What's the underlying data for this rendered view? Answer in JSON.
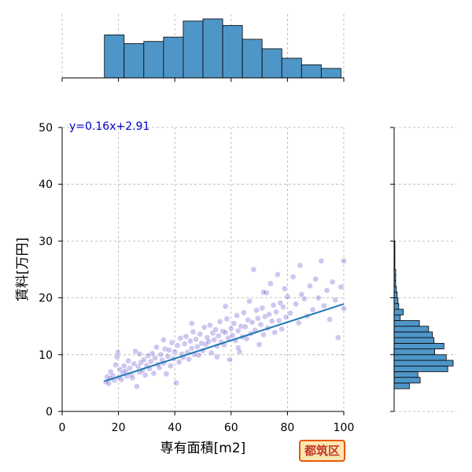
{
  "badge": {
    "label": "都筑区"
  },
  "chart_data": {
    "type": "scatter",
    "title": "",
    "xlabel": "専有面積[m2]",
    "ylabel": "賃料[万円]",
    "xlim": [
      0,
      100
    ],
    "ylim": [
      0,
      50
    ],
    "xticks": [
      0,
      20,
      40,
      60,
      80,
      100
    ],
    "yticks": [
      0,
      10,
      20,
      30,
      40,
      50
    ],
    "grid": true,
    "point_color": "#4b3bc4",
    "line_color": "#1f77b4",
    "hist_color": "#4f96c8",
    "fit": {
      "label": "y=0.16x+2.91",
      "slope": 0.16,
      "intercept": 2.91,
      "x_range": [
        15,
        100
      ],
      "label_color": "#0000cc"
    },
    "points": [
      [
        15.5,
        5.2
      ],
      [
        16.0,
        6.1
      ],
      [
        16.5,
        4.9
      ],
      [
        17.0,
        5.8
      ],
      [
        17.2,
        7.0
      ],
      [
        18.0,
        6.3
      ],
      [
        18.5,
        5.5
      ],
      [
        19.0,
        8.2
      ],
      [
        19.5,
        9.6
      ],
      [
        20.0,
        6.0
      ],
      [
        20.5,
        7.4
      ],
      [
        21.0,
        5.6
      ],
      [
        21.5,
        6.8
      ],
      [
        22.0,
        8.0
      ],
      [
        22.5,
        7.1
      ],
      [
        23.0,
        6.2
      ],
      [
        23.5,
        8.9
      ],
      [
        24.0,
        7.6
      ],
      [
        24.5,
        6.5
      ],
      [
        25.0,
        5.9
      ],
      [
        25.5,
        8.4
      ],
      [
        26.0,
        10.6
      ],
      [
        26.5,
        4.4
      ],
      [
        27.0,
        7.9
      ],
      [
        27.5,
        6.9
      ],
      [
        28.0,
        8.6
      ],
      [
        28.5,
        7.2
      ],
      [
        29.0,
        9.1
      ],
      [
        29.5,
        6.4
      ],
      [
        30.0,
        8.1
      ],
      [
        30.5,
        9.8
      ],
      [
        31.0,
        7.5
      ],
      [
        31.5,
        8.8
      ],
      [
        32.0,
        10.2
      ],
      [
        32.5,
        6.7
      ],
      [
        33.0,
        9.4
      ],
      [
        33.5,
        11.3
      ],
      [
        34.0,
        8.3
      ],
      [
        34.5,
        7.7
      ],
      [
        35.0,
        10.0
      ],
      [
        35.5,
        9.0
      ],
      [
        36.0,
        8.5
      ],
      [
        36.5,
        11.0
      ],
      [
        37.0,
        6.6
      ],
      [
        37.5,
        9.7
      ],
      [
        38.0,
        10.8
      ],
      [
        38.5,
        8.0
      ],
      [
        39.0,
        12.1
      ],
      [
        39.5,
        9.3
      ],
      [
        40.0,
        10.5
      ],
      [
        40.5,
        5.0
      ],
      [
        41.0,
        11.6
      ],
      [
        41.5,
        8.7
      ],
      [
        42.0,
        12.9
      ],
      [
        42.5,
        10.1
      ],
      [
        43.0,
        9.5
      ],
      [
        43.5,
        11.9
      ],
      [
        44.0,
        13.2
      ],
      [
        44.5,
        10.4
      ],
      [
        45.0,
        9.2
      ],
      [
        45.5,
        12.4
      ],
      [
        46.0,
        11.1
      ],
      [
        46.5,
        14.0
      ],
      [
        47.0,
        10.0
      ],
      [
        47.5,
        12.7
      ],
      [
        48.0,
        11.4
      ],
      [
        48.5,
        9.9
      ],
      [
        49.0,
        13.6
      ],
      [
        49.5,
        12.0
      ],
      [
        50.0,
        10.7
      ],
      [
        50.5,
        14.8
      ],
      [
        51.0,
        11.8
      ],
      [
        51.5,
        13.0
      ],
      [
        52.0,
        12.3
      ],
      [
        52.5,
        15.2
      ],
      [
        53.0,
        10.3
      ],
      [
        53.5,
        13.8
      ],
      [
        54.0,
        12.6
      ],
      [
        54.5,
        14.4
      ],
      [
        55.0,
        11.5
      ],
      [
        55.5,
        13.3
      ],
      [
        56.0,
        15.8
      ],
      [
        56.5,
        12.2
      ],
      [
        57.0,
        14.1
      ],
      [
        57.5,
        11.7
      ],
      [
        58.0,
        13.9
      ],
      [
        58.5,
        16.3
      ],
      [
        59.0,
        12.9
      ],
      [
        59.5,
        9.1
      ],
      [
        60.0,
        14.6
      ],
      [
        60.5,
        13.4
      ],
      [
        61.0,
        15.5
      ],
      [
        61.5,
        12.5
      ],
      [
        62.0,
        16.9
      ],
      [
        62.5,
        14.2
      ],
      [
        63.0,
        10.5
      ],
      [
        63.5,
        15.0
      ],
      [
        64.0,
        13.1
      ],
      [
        64.5,
        17.4
      ],
      [
        65.0,
        14.9
      ],
      [
        65.5,
        12.8
      ],
      [
        66.0,
        16.1
      ],
      [
        66.5,
        19.4
      ],
      [
        67.0,
        13.7
      ],
      [
        67.5,
        15.7
      ],
      [
        68.0,
        25.0
      ],
      [
        68.5,
        14.3
      ],
      [
        69.0,
        17.8
      ],
      [
        69.5,
        16.4
      ],
      [
        70.0,
        11.8
      ],
      [
        70.5,
        15.3
      ],
      [
        71.0,
        18.2
      ],
      [
        71.5,
        13.5
      ],
      [
        72.0,
        16.7
      ],
      [
        72.5,
        20.9
      ],
      [
        73.0,
        14.7
      ],
      [
        73.5,
        17.1
      ],
      [
        74.0,
        22.5
      ],
      [
        74.5,
        15.9
      ],
      [
        75.0,
        18.7
      ],
      [
        75.5,
        13.9
      ],
      [
        76.0,
        17.5
      ],
      [
        76.5,
        24.1
      ],
      [
        77.0,
        16.0
      ],
      [
        77.5,
        19.1
      ],
      [
        78.0,
        14.5
      ],
      [
        78.5,
        18.4
      ],
      [
        79.0,
        21.6
      ],
      [
        79.5,
        16.6
      ],
      [
        80.0,
        20.2
      ],
      [
        81.0,
        17.3
      ],
      [
        82.0,
        23.7
      ],
      [
        83.0,
        18.9
      ],
      [
        84.0,
        15.6
      ],
      [
        85.0,
        20.6
      ],
      [
        86.0,
        19.8
      ],
      [
        87.0,
        16.8
      ],
      [
        88.0,
        22.1
      ],
      [
        89.0,
        17.9
      ],
      [
        90.0,
        23.3
      ],
      [
        91.0,
        20.0
      ],
      [
        92.0,
        26.5
      ],
      [
        93.0,
        18.6
      ],
      [
        94.0,
        21.3
      ],
      [
        95.0,
        16.2
      ],
      [
        96.0,
        22.8
      ],
      [
        97.0,
        19.6
      ],
      [
        98.0,
        13.0
      ],
      [
        99.0,
        21.9
      ],
      [
        100.0,
        26.5
      ],
      [
        100.0,
        18.1
      ],
      [
        84.5,
        25.7
      ],
      [
        71.5,
        21.0
      ],
      [
        58.0,
        18.5
      ],
      [
        46.0,
        15.5
      ],
      [
        36.0,
        12.6
      ],
      [
        27.5,
        10.1
      ],
      [
        19.8,
        10.4
      ],
      [
        62.5,
        11.2
      ],
      [
        55.0,
        9.6
      ]
    ],
    "top_hist": {
      "bin_edges": [
        15,
        22,
        29,
        36,
        43,
        50,
        57,
        64,
        71,
        78,
        85,
        92,
        99
      ],
      "counts": [
        59,
        47,
        50,
        56,
        78,
        81,
        72,
        53,
        40,
        27,
        18,
        13
      ]
    },
    "right_hist": {
      "bin_edges": [
        4,
        5,
        6,
        7,
        8,
        9,
        10,
        11,
        12,
        13,
        14,
        15,
        16,
        17,
        18,
        19,
        20,
        21,
        22,
        23,
        24,
        25,
        26,
        27,
        28,
        29,
        30
      ],
      "counts": [
        20,
        34,
        31,
        70,
        77,
        68,
        53,
        65,
        52,
        50,
        45,
        33,
        8,
        12,
        6,
        5,
        4,
        3,
        2,
        2,
        2,
        1,
        1,
        1,
        1,
        1
      ]
    }
  }
}
